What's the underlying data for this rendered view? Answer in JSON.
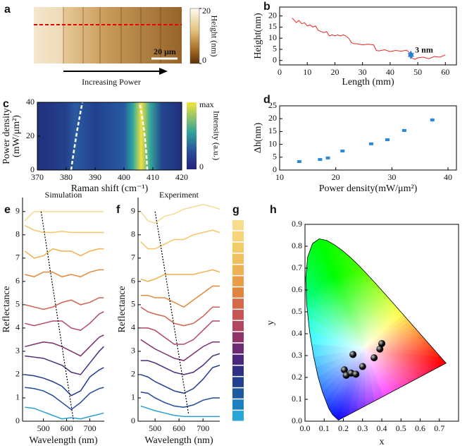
{
  "chart_data": [
    {
      "panel": "a",
      "type": "image",
      "colorbar_label": "Height (nm)",
      "colorbar_lim": [
        0,
        20
      ],
      "colorbar_ticks": [
        0,
        20
      ],
      "scale_bar_label": "20 μm",
      "arrow_label": "Increasing Power"
    },
    {
      "panel": "b",
      "type": "line",
      "xlabel": "Length (mm)",
      "ylabel": "Height(nm)",
      "color": "#e8261f",
      "x": [
        4.5,
        5,
        6,
        7,
        8,
        9,
        10,
        11,
        12,
        13,
        14,
        15,
        16,
        17,
        18,
        19,
        20,
        21,
        22,
        23,
        24,
        25,
        26,
        27,
        28,
        30,
        32,
        34,
        35,
        36,
        38,
        40,
        42,
        44,
        46,
        47,
        48,
        49,
        50,
        52,
        54,
        56,
        58,
        60
      ],
      "values": [
        19,
        18.5,
        17,
        18,
        16.5,
        17,
        15.5,
        16,
        15,
        15.5,
        13.5,
        13,
        12.5,
        13,
        11,
        11.5,
        11,
        11.5,
        11,
        11.5,
        11,
        10,
        8,
        7.5,
        7.5,
        7,
        7.3,
        7,
        4.5,
        4.3,
        4.8,
        4,
        4.5,
        4.2,
        4.6,
        3.5,
        1,
        0.5,
        1.2,
        1.5,
        0.8,
        1.8,
        1.5,
        2.5
      ],
      "xlim": [
        0,
        64
      ],
      "ylim": [
        -2,
        24
      ],
      "xticks": [
        0,
        10,
        20,
        30,
        40,
        50,
        60
      ],
      "yticks": [
        0,
        5,
        10,
        15,
        20
      ],
      "annotation": "3 nm",
      "annotation_color": "#2a7fd4"
    },
    {
      "panel": "c",
      "type": "heatmap",
      "xlabel": "Raman shift (cm⁻¹)",
      "ylabel": [
        "Power density",
        "(mW/μm²)"
      ],
      "xlim": [
        370,
        420
      ],
      "ylim": [
        0,
        40
      ],
      "xticks": [
        370,
        380,
        390,
        400,
        410,
        420
      ],
      "yticks": [
        0,
        20,
        40
      ],
      "colorbar_label": "Intensity (a.u.)",
      "colorbar_labels": [
        "max",
        "0"
      ]
    },
    {
      "panel": "d",
      "type": "scatter",
      "xlabel": "Power density(mW/μm²)",
      "ylabel": "Δh(nm)",
      "color": "#2a8ad8",
      "x": [
        13.5,
        17.2,
        18.6,
        21.2,
        26.3,
        29.2,
        32.2,
        37.2
      ],
      "values": [
        3.3,
        4.1,
        4.7,
        7.4,
        10.2,
        11.8,
        15.4,
        19.5
      ],
      "errors": [
        0.5,
        0.5,
        0.5,
        0.5,
        0.5,
        0.6,
        0.6,
        1.0
      ],
      "xlim": [
        10,
        41.5
      ],
      "ylim": [
        0,
        25
      ],
      "xticks": [
        10,
        20,
        30,
        40
      ],
      "yticks": [
        0,
        5,
        10,
        15,
        20,
        25
      ]
    },
    {
      "panel": "e",
      "type": "line",
      "title": "Simulation",
      "xlabel": "Wavelength (nm)",
      "ylabel": "Reflectance",
      "x": [
        420,
        460,
        500,
        540,
        580,
        620,
        660,
        700,
        740,
        760
      ],
      "xlim": [
        410,
        762
      ],
      "ylim": [
        0,
        9.6
      ],
      "xticks": [
        500,
        600,
        700
      ],
      "yticks": [
        0,
        1,
        2,
        3,
        4,
        5,
        6,
        7,
        8,
        9
      ],
      "series": [
        {
          "color": "#2ba0d0",
          "values": [
            0.6,
            0.55,
            0.4,
            0.25,
            0.1,
            0.15,
            0.1,
            0.2,
            0.3,
            0.35
          ]
        },
        {
          "color": "#1d4a9c",
          "values": [
            1.45,
            1.4,
            1.3,
            1.1,
            0.8,
            0.5,
            0.8,
            1.2,
            1.4,
            1.45
          ]
        },
        {
          "color": "#203a8c",
          "values": [
            2.0,
            1.95,
            1.85,
            1.7,
            1.5,
            1.1,
            1.3,
            1.9,
            2.2,
            2.3
          ]
        },
        {
          "color": "#4b2c7c",
          "values": [
            2.8,
            2.75,
            2.7,
            2.55,
            2.4,
            2.1,
            2.0,
            2.5,
            3.0,
            3.2
          ]
        },
        {
          "color": "#7d2f6f",
          "values": [
            3.2,
            3.3,
            3.4,
            3.35,
            3.2,
            3.0,
            2.8,
            3.2,
            3.6,
            3.7
          ]
        },
        {
          "color": "#b24a62",
          "values": [
            4.2,
            4.1,
            4.2,
            4.3,
            4.3,
            4.0,
            3.9,
            4.2,
            4.6,
            4.7
          ]
        },
        {
          "color": "#d26150",
          "values": [
            5.0,
            4.9,
            4.8,
            4.9,
            5.1,
            5.2,
            5.0,
            5.1,
            5.3,
            5.3
          ]
        },
        {
          "color": "#e48a3e",
          "values": [
            6.3,
            6.2,
            6.4,
            6.4,
            6.2,
            6.3,
            6.2,
            6.4,
            6.5,
            6.5
          ]
        },
        {
          "color": "#efb04a",
          "values": [
            7.3,
            7.0,
            7.1,
            7.4,
            7.3,
            7.3,
            7.1,
            7.3,
            7.4,
            7.4
          ]
        },
        {
          "color": "#f3c766",
          "values": [
            8.4,
            8.2,
            8.1,
            8.1,
            8.15,
            8.1,
            8.1,
            8.1,
            8.1,
            8.1
          ]
        },
        {
          "color": "#f6da94",
          "values": [
            8.6,
            9.0,
            9.0,
            9.0,
            9.0,
            9.0,
            9.0,
            9.0,
            9.0,
            9.0
          ]
        }
      ],
      "trend_line": {
        "x": [
          490,
          630
        ],
        "y": [
          9,
          0
        ]
      }
    },
    {
      "panel": "f",
      "type": "line",
      "title": "Experiment",
      "xlabel": "Wavelength (nm)",
      "ylabel": "Reflectance",
      "x": [
        440,
        470,
        500,
        540,
        580,
        620,
        660,
        700,
        740,
        770
      ],
      "xlim": [
        429,
        770
      ],
      "ylim": [
        0,
        9.6
      ],
      "xticks": [
        500,
        600,
        700
      ],
      "yticks": [
        0,
        1,
        2,
        3,
        4,
        5,
        6,
        7,
        8,
        9
      ],
      "series": [
        {
          "color": "#2ba0d0",
          "values": [
            0.65,
            0.55,
            0.45,
            0.35,
            0.25,
            0.2,
            0.2,
            0.2,
            0.2,
            0.2
          ]
        },
        {
          "color": "#1d4a9c",
          "values": [
            1.25,
            1.2,
            1.0,
            0.8,
            0.65,
            0.6,
            0.7,
            0.9,
            1.0,
            1.0
          ]
        },
        {
          "color": "#203a8c",
          "values": [
            2.0,
            1.9,
            1.7,
            1.5,
            1.3,
            1.2,
            1.4,
            1.8,
            2.3,
            2.4
          ]
        },
        {
          "color": "#4b2c7c",
          "values": [
            2.6,
            2.6,
            2.5,
            2.3,
            2.1,
            2.0,
            2.1,
            2.4,
            2.8,
            2.9
          ]
        },
        {
          "color": "#7d2f6f",
          "values": [
            3.5,
            3.3,
            3.1,
            2.9,
            2.7,
            2.6,
            2.9,
            3.2,
            3.4,
            3.4
          ]
        },
        {
          "color": "#b24a62",
          "values": [
            4.0,
            4.0,
            3.9,
            3.6,
            3.3,
            3.3,
            3.5,
            3.9,
            4.3,
            4.3
          ]
        },
        {
          "color": "#d26150",
          "values": [
            4.9,
            4.7,
            4.6,
            4.5,
            4.2,
            4.1,
            4.2,
            4.5,
            4.9,
            4.9
          ]
        },
        {
          "color": "#e48a3e",
          "values": [
            5.4,
            5.4,
            5.3,
            5.3,
            5.1,
            4.9,
            5.2,
            5.5,
            5.8,
            5.8
          ]
        },
        {
          "color": "#efb04a",
          "values": [
            6.1,
            6.0,
            6.1,
            6.3,
            6.3,
            6.3,
            6.3,
            6.4,
            6.5,
            6.4
          ]
        },
        {
          "color": "#f3c766",
          "values": [
            7.7,
            7.4,
            7.4,
            7.6,
            7.8,
            7.8,
            8.0,
            8.1,
            8.2,
            8.1
          ]
        },
        {
          "color": "#f6da94",
          "values": [
            9.0,
            8.6,
            8.5,
            8.8,
            8.9,
            9.1,
            9.2,
            9.3,
            9.2,
            9.1
          ]
        }
      ],
      "trend_line": {
        "x": [
          500,
          640
        ],
        "y": [
          9,
          0.3
        ]
      }
    },
    {
      "panel": "g",
      "type": "swatches",
      "colors": [
        "#f7dc8e",
        "#f5d47a",
        "#f3cc6a",
        "#f0c060",
        "#eeb255",
        "#e89e48",
        "#e0853f",
        "#d4684a",
        "#c85456",
        "#b2455f",
        "#8e3468",
        "#6b2c73",
        "#4a2a7f",
        "#2f2f86",
        "#23408f",
        "#1f5aa1",
        "#1e7fc0",
        "#2aa6d6"
      ]
    },
    {
      "panel": "h",
      "type": "scatter",
      "xlabel": "x",
      "ylabel": "y",
      "x": [
        0.205,
        0.215,
        0.24,
        0.265,
        0.25,
        0.3,
        0.36,
        0.39,
        0.4
      ],
      "values": [
        0.235,
        0.21,
        0.22,
        0.215,
        0.305,
        0.25,
        0.29,
        0.33,
        0.355
      ],
      "xlim": [
        0,
        0.8
      ],
      "ylim": [
        0,
        0.9
      ],
      "xticks": [
        {
          "value": 0,
          "label": "0.0"
        },
        {
          "value": 0.1,
          "label": "0.1"
        },
        {
          "value": 0.2,
          "label": "0.2"
        },
        {
          "value": 0.3,
          "label": "0.3"
        },
        {
          "value": 0.4,
          "label": "0.4"
        },
        {
          "value": 0.5,
          "label": "0.5"
        },
        {
          "value": 0.6,
          "label": "0.6"
        },
        {
          "value": 0.7,
          "label": "0.7"
        }
      ],
      "yticks": [
        {
          "value": 0,
          "label": "0.0"
        },
        {
          "value": 0.1,
          "label": "0.1"
        },
        {
          "value": 0.2,
          "label": "0.2"
        },
        {
          "value": 0.3,
          "label": "0.3"
        },
        {
          "value": 0.4,
          "label": "0.4"
        },
        {
          "value": 0.5,
          "label": "0.5"
        },
        {
          "value": 0.6,
          "label": "0.6"
        },
        {
          "value": 0.7,
          "label": "0.7"
        },
        {
          "value": 0.8,
          "label": "0.8"
        },
        {
          "value": 0.9,
          "label": "0.9"
        }
      ]
    }
  ]
}
